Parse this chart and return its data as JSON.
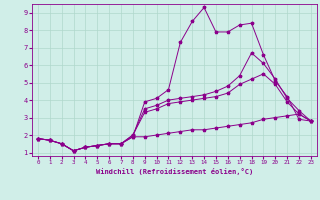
{
  "xlabel": "Windchill (Refroidissement éolien,°C)",
  "xlim": [
    -0.5,
    23.5
  ],
  "ylim": [
    0.8,
    9.5
  ],
  "xticks": [
    0,
    1,
    2,
    3,
    4,
    5,
    6,
    7,
    8,
    9,
    10,
    11,
    12,
    13,
    14,
    15,
    16,
    17,
    18,
    19,
    20,
    21,
    22,
    23
  ],
  "yticks": [
    1,
    2,
    3,
    4,
    5,
    6,
    7,
    8,
    9
  ],
  "bg_color": "#d0eee8",
  "grid_color": "#b0d8cc",
  "line_color": "#8b008b",
  "line1_x": [
    0,
    1,
    2,
    3,
    4,
    5,
    6,
    7,
    8,
    9,
    10,
    11,
    12,
    13,
    14,
    15,
    16,
    17,
    18,
    19,
    20,
    21,
    22,
    23
  ],
  "line1_y": [
    1.8,
    1.7,
    1.5,
    1.1,
    1.3,
    1.4,
    1.5,
    1.5,
    1.9,
    3.9,
    4.1,
    4.6,
    7.3,
    8.5,
    9.3,
    7.9,
    7.9,
    8.3,
    8.4,
    6.6,
    5.1,
    4.2,
    2.9,
    2.8
  ],
  "line2_x": [
    0,
    1,
    2,
    3,
    4,
    5,
    6,
    7,
    8,
    9,
    10,
    11,
    12,
    13,
    14,
    15,
    16,
    17,
    18,
    19,
    20,
    21,
    22,
    23
  ],
  "line2_y": [
    1.8,
    1.7,
    1.5,
    1.1,
    1.3,
    1.4,
    1.5,
    1.5,
    2.0,
    3.5,
    3.7,
    4.0,
    4.1,
    4.2,
    4.3,
    4.5,
    4.8,
    5.4,
    6.7,
    6.1,
    5.2,
    4.1,
    3.4,
    2.8
  ],
  "line3_x": [
    0,
    1,
    2,
    3,
    4,
    5,
    6,
    7,
    8,
    9,
    10,
    11,
    12,
    13,
    14,
    15,
    16,
    17,
    18,
    19,
    20,
    21,
    22,
    23
  ],
  "line3_y": [
    1.8,
    1.7,
    1.5,
    1.1,
    1.3,
    1.4,
    1.5,
    1.5,
    2.0,
    3.3,
    3.5,
    3.8,
    3.9,
    4.0,
    4.1,
    4.2,
    4.4,
    4.9,
    5.2,
    5.5,
    4.9,
    3.9,
    3.2,
    2.8
  ],
  "line4_x": [
    0,
    1,
    2,
    3,
    4,
    5,
    6,
    7,
    8,
    9,
    10,
    11,
    12,
    13,
    14,
    15,
    16,
    17,
    18,
    19,
    20,
    21,
    22,
    23
  ],
  "line4_y": [
    1.8,
    1.7,
    1.5,
    1.1,
    1.3,
    1.4,
    1.5,
    1.5,
    1.9,
    1.9,
    2.0,
    2.1,
    2.2,
    2.3,
    2.3,
    2.4,
    2.5,
    2.6,
    2.7,
    2.9,
    3.0,
    3.1,
    3.2,
    2.8
  ]
}
